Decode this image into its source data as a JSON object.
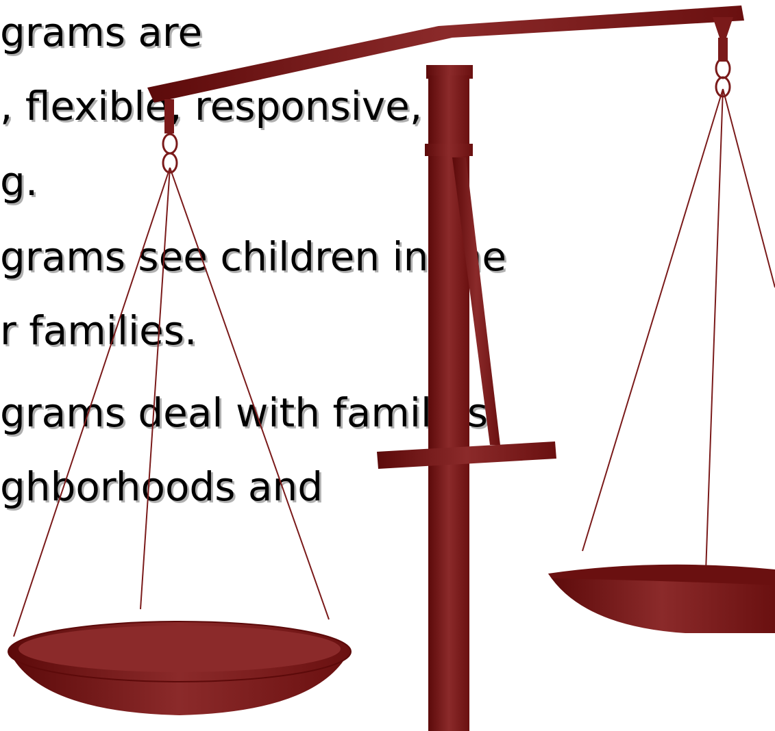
{
  "text_lines": [
    "grams are",
    ", flexible, responsive,",
    "g.",
    "grams see children in the",
    "r families.",
    "grams deal with families",
    "ghborhoods and"
  ]
}
